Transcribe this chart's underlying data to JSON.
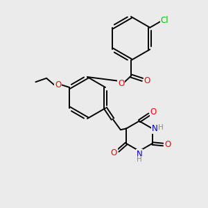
{
  "bg_color": "#ebebeb",
  "bond_color": "#000000",
  "O_color": "#ff0000",
  "N_color": "#0000cc",
  "Cl_color": "#00bb00",
  "H_color": "#888888",
  "line_width": 1.4,
  "font_size": 8.5,
  "xlim": [
    0,
    10
  ],
  "ylim": [
    0,
    10
  ]
}
